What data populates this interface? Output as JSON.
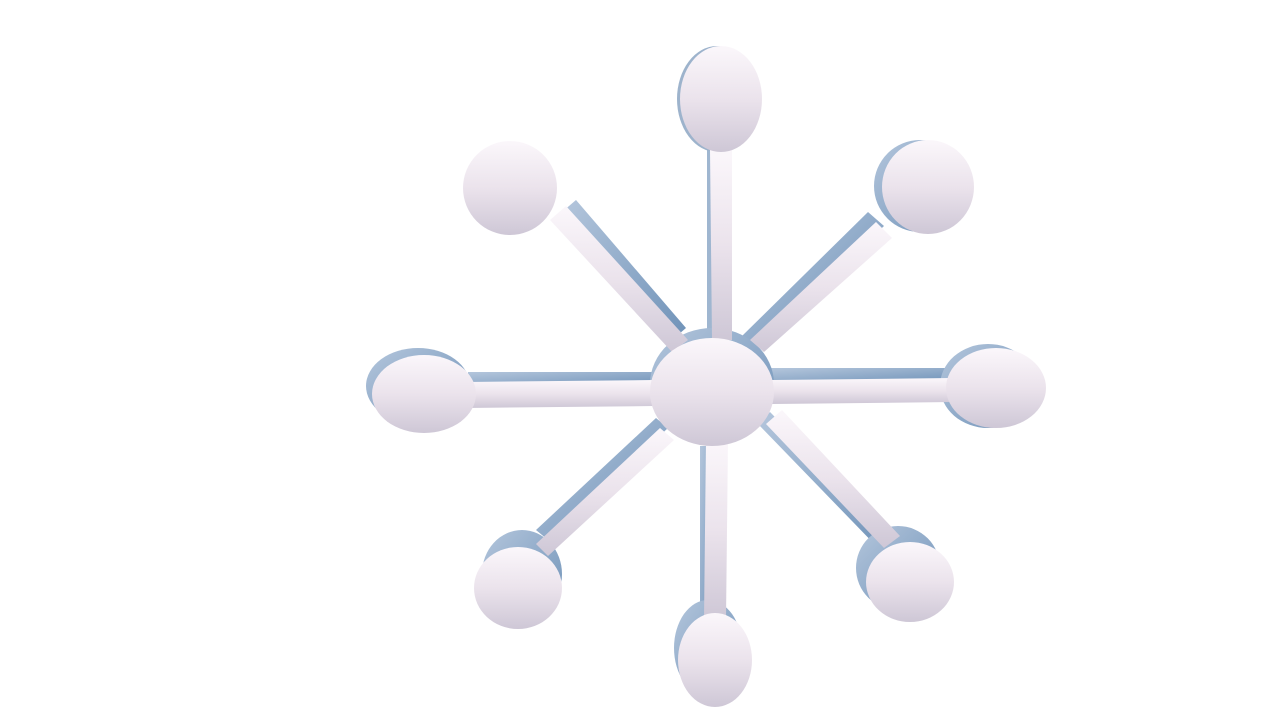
{
  "scene": {
    "object": "eight-armed-snowflake-model",
    "arm_count": 8,
    "colors": {
      "background": "#ffffff",
      "face_top": "#fbf6fa",
      "face_bottom": "#d2cbd8",
      "side_shadow": "#7f9fc0",
      "side_highlight": "#a9bfd8"
    }
  }
}
